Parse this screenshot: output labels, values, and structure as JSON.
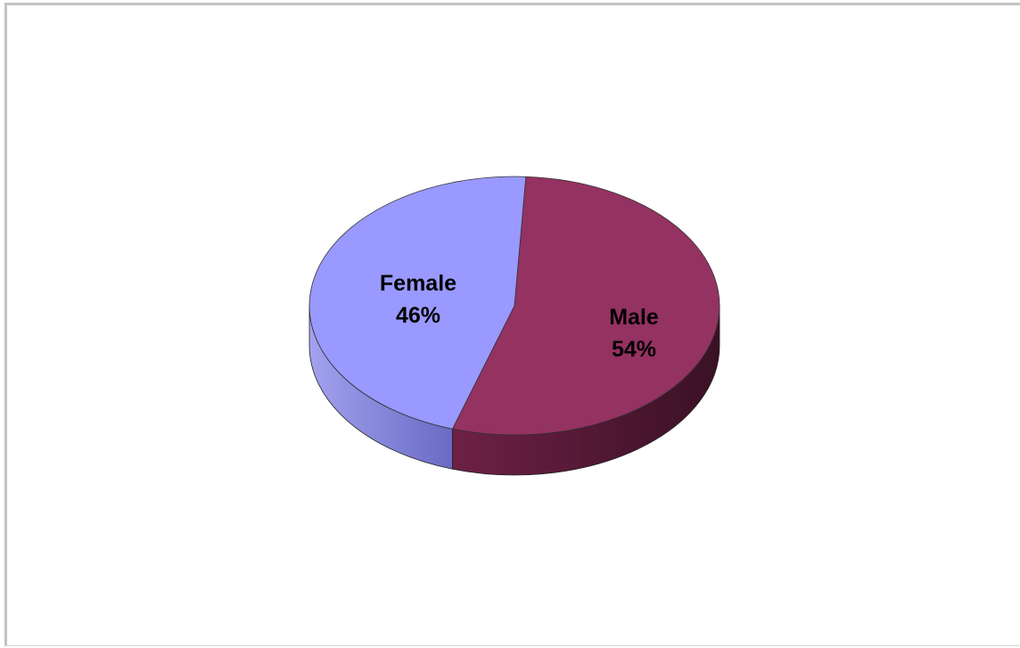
{
  "chart_data": {
    "type": "pie",
    "style": "3d",
    "slices": [
      {
        "label": "Male",
        "value": 54,
        "value_label": "54%",
        "color": "#943262"
      },
      {
        "label": "Female",
        "value": 46,
        "value_label": "46%",
        "color": "#9999ff"
      }
    ],
    "unit": "%",
    "legend": "none",
    "data_labels": "inside"
  }
}
